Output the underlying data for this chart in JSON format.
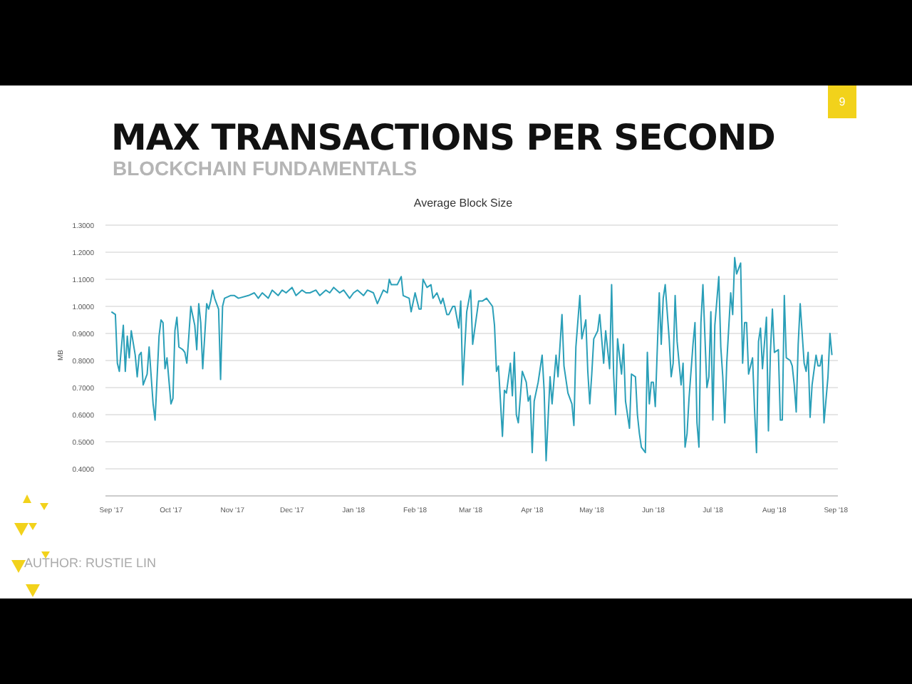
{
  "chart_data": {
    "type": "line",
    "title": "Average Block Size",
    "ylabel": "MB",
    "annotations": [
      "MAX TRANSACTIONS PER SECOND",
      "BLOCKCHAIN FUNDAMENTALS",
      "9",
      "AUTHOR: RUSTIE LIN"
    ],
    "x": [
      "2017-09-01",
      "2017-09-03",
      "2017-09-04",
      "2017-09-05",
      "2017-09-07",
      "2017-09-08",
      "2017-09-09",
      "2017-09-10",
      "2017-09-11",
      "2017-09-13",
      "2017-09-14",
      "2017-09-15",
      "2017-09-16",
      "2017-09-17",
      "2017-09-19",
      "2017-09-20",
      "2017-09-22",
      "2017-09-23",
      "2017-09-25",
      "2017-09-26",
      "2017-09-27",
      "2017-09-28",
      "2017-09-29",
      "2017-10-01",
      "2017-10-02",
      "2017-10-03",
      "2017-10-04",
      "2017-10-05",
      "2017-10-07",
      "2017-10-08",
      "2017-10-09",
      "2017-10-10",
      "2017-10-11",
      "2017-10-13",
      "2017-10-14",
      "2017-10-15",
      "2017-10-16",
      "2017-10-17",
      "2017-10-19",
      "2017-10-20",
      "2017-10-21",
      "2017-10-22",
      "2017-10-23",
      "2017-10-25",
      "2017-10-26",
      "2017-10-27",
      "2017-10-28",
      "2017-10-31",
      "2017-11-02",
      "2017-11-04",
      "2017-11-09",
      "2017-11-12",
      "2017-11-14",
      "2017-11-16",
      "2017-11-19",
      "2017-11-21",
      "2017-11-24",
      "2017-11-26",
      "2017-11-28",
      "2017-12-01",
      "2017-12-03",
      "2017-12-06",
      "2017-12-08",
      "2017-12-10",
      "2017-12-13",
      "2017-12-15",
      "2017-12-18",
      "2017-12-20",
      "2017-12-22",
      "2017-12-25",
      "2017-12-27",
      "2017-12-30",
      "2018-01-01",
      "2018-01-03",
      "2018-01-06",
      "2018-01-08",
      "2018-01-11",
      "2018-01-13",
      "2018-01-16",
      "2018-01-18",
      "2018-01-19",
      "2018-01-20",
      "2018-01-23",
      "2018-01-25",
      "2018-01-26",
      "2018-01-29",
      "2018-01-30",
      "2018-02-01",
      "2018-02-03",
      "2018-02-04",
      "2018-02-05",
      "2018-02-07",
      "2018-02-09",
      "2018-02-10",
      "2018-02-12",
      "2018-02-14",
      "2018-02-15",
      "2018-02-17",
      "2018-02-18",
      "2018-02-20",
      "2018-02-21",
      "2018-02-23",
      "2018-02-24",
      "2018-02-25",
      "2018-02-27",
      "2018-03-01",
      "2018-03-02",
      "2018-03-05",
      "2018-03-07",
      "2018-03-09",
      "2018-03-12",
      "2018-03-13",
      "2018-03-14",
      "2018-03-15",
      "2018-03-17",
      "2018-03-18",
      "2018-03-19",
      "2018-03-21",
      "2018-03-22",
      "2018-03-23",
      "2018-03-24",
      "2018-03-25",
      "2018-03-27",
      "2018-03-29",
      "2018-03-30",
      "2018-03-31",
      "2018-04-01",
      "2018-04-02",
      "2018-04-04",
      "2018-04-06",
      "2018-04-07",
      "2018-04-08",
      "2018-04-10",
      "2018-04-11",
      "2018-04-13",
      "2018-04-14",
      "2018-04-16",
      "2018-04-17",
      "2018-04-19",
      "2018-04-21",
      "2018-04-22",
      "2018-04-23",
      "2018-04-25",
      "2018-04-26",
      "2018-04-28",
      "2018-04-29",
      "2018-04-30",
      "2018-05-01",
      "2018-05-02",
      "2018-05-04",
      "2018-05-05",
      "2018-05-07",
      "2018-05-08",
      "2018-05-10",
      "2018-05-11",
      "2018-05-12",
      "2018-05-13",
      "2018-05-14",
      "2018-05-16",
      "2018-05-17",
      "2018-05-18",
      "2018-05-20",
      "2018-05-21",
      "2018-05-23",
      "2018-05-24",
      "2018-05-25",
      "2018-05-26",
      "2018-05-28",
      "2018-05-29",
      "2018-05-30",
      "2018-05-31",
      "2018-06-01",
      "2018-06-02",
      "2018-06-04",
      "2018-06-05",
      "2018-06-06",
      "2018-06-07",
      "2018-06-09",
      "2018-06-10",
      "2018-06-11",
      "2018-06-12",
      "2018-06-13",
      "2018-06-15",
      "2018-06-16",
      "2018-06-17",
      "2018-06-18",
      "2018-06-19",
      "2018-06-21",
      "2018-06-22",
      "2018-06-23",
      "2018-06-24",
      "2018-06-25",
      "2018-06-26",
      "2018-06-28",
      "2018-06-29",
      "2018-06-30",
      "2018-07-01",
      "2018-07-02",
      "2018-07-04",
      "2018-07-05",
      "2018-07-06",
      "2018-07-07",
      "2018-07-08",
      "2018-07-10",
      "2018-07-11",
      "2018-07-12",
      "2018-07-13",
      "2018-07-15",
      "2018-07-16",
      "2018-07-17",
      "2018-07-18",
      "2018-07-19",
      "2018-07-21",
      "2018-07-22",
      "2018-07-23",
      "2018-07-24",
      "2018-07-25",
      "2018-07-26",
      "2018-07-28",
      "2018-07-29",
      "2018-07-30",
      "2018-07-31",
      "2018-08-01",
      "2018-08-03",
      "2018-08-04",
      "2018-08-05",
      "2018-08-06",
      "2018-08-07",
      "2018-08-09",
      "2018-08-10",
      "2018-08-11",
      "2018-08-12",
      "2018-08-13",
      "2018-08-14",
      "2018-08-16",
      "2018-08-17",
      "2018-08-18",
      "2018-08-19",
      "2018-08-20",
      "2018-08-22",
      "2018-08-23",
      "2018-08-24",
      "2018-08-25",
      "2018-08-26",
      "2018-08-28",
      "2018-08-29",
      "2018-08-30"
    ],
    "series": [
      {
        "color": "#2a9fb8",
        "values": [
          0.98,
          0.97,
          0.79,
          0.76,
          0.93,
          0.76,
          0.89,
          0.81,
          0.91,
          0.82,
          0.74,
          0.82,
          0.83,
          0.71,
          0.75,
          0.85,
          0.64,
          0.58,
          0.89,
          0.95,
          0.94,
          0.77,
          0.81,
          0.64,
          0.66,
          0.91,
          0.96,
          0.85,
          0.84,
          0.83,
          0.79,
          0.89,
          1.0,
          0.93,
          0.84,
          1.01,
          0.94,
          0.77,
          1.01,
          0.99,
          1.02,
          1.06,
          1.03,
          0.99,
          0.73,
          1.0,
          1.03,
          1.04,
          1.04,
          1.03,
          1.04,
          1.05,
          1.03,
          1.05,
          1.03,
          1.06,
          1.04,
          1.06,
          1.05,
          1.07,
          1.04,
          1.06,
          1.05,
          1.05,
          1.06,
          1.04,
          1.06,
          1.05,
          1.07,
          1.05,
          1.06,
          1.03,
          1.05,
          1.06,
          1.04,
          1.06,
          1.05,
          1.01,
          1.06,
          1.05,
          1.1,
          1.08,
          1.08,
          1.11,
          1.04,
          1.03,
          0.98,
          1.05,
          0.99,
          0.99,
          1.1,
          1.07,
          1.08,
          1.03,
          1.05,
          1.01,
          1.03,
          0.97,
          0.97,
          1.0,
          1.0,
          0.92,
          1.02,
          0.71,
          0.98,
          1.06,
          0.86,
          1.02,
          1.02,
          1.03,
          1.0,
          0.93,
          0.76,
          0.78,
          0.52,
          0.69,
          0.68,
          0.79,
          0.67,
          0.83,
          0.6,
          0.57,
          0.76,
          0.72,
          0.65,
          0.67,
          0.46,
          0.65,
          0.72,
          0.82,
          0.69,
          0.43,
          0.74,
          0.64,
          0.82,
          0.74,
          0.97,
          0.78,
          0.68,
          0.64,
          0.56,
          0.85,
          1.04,
          0.88,
          0.95,
          0.76,
          0.64,
          0.75,
          0.88,
          0.91,
          0.97,
          0.79,
          0.91,
          0.77,
          1.08,
          0.75,
          0.6,
          0.88,
          0.75,
          0.86,
          0.65,
          0.55,
          0.75,
          0.74,
          0.6,
          0.53,
          0.48,
          0.46,
          0.83,
          0.64,
          0.72,
          0.72,
          0.63,
          1.05,
          0.86,
          1.03,
          1.08,
          0.88,
          0.74,
          0.79,
          1.04,
          0.87,
          0.71,
          0.79,
          0.48,
          0.53,
          0.66,
          0.86,
          0.94,
          0.57,
          0.48,
          0.94,
          1.08,
          0.7,
          0.74,
          0.98,
          0.58,
          0.93,
          1.11,
          0.85,
          0.74,
          0.57,
          0.79,
          1.05,
          0.97,
          1.18,
          1.12,
          1.16,
          0.79,
          0.94,
          0.94,
          0.75,
          0.81,
          0.62,
          0.46,
          0.87,
          0.92,
          0.77,
          0.96,
          0.54,
          0.83,
          0.99,
          0.83,
          0.84,
          0.58,
          0.58,
          1.04,
          0.81,
          0.8,
          0.78,
          0.71,
          0.61,
          0.86,
          1.01,
          0.79,
          0.76,
          0.83,
          0.59,
          0.71,
          0.82,
          0.78,
          0.78,
          0.82,
          0.57,
          0.74,
          0.9,
          0.82
        ]
      }
    ],
    "xlim": [
      "2017-08-29",
      "2018-09-02"
    ],
    "xticks": [
      {
        "value": "2017-09-01",
        "label": "Sep '17"
      },
      {
        "value": "2017-10-01",
        "label": "Oct '17"
      },
      {
        "value": "2017-11-01",
        "label": "Nov '17"
      },
      {
        "value": "2017-12-01",
        "label": "Dec '17"
      },
      {
        "value": "2018-01-01",
        "label": "Jan '18"
      },
      {
        "value": "2018-02-01",
        "label": "Feb '18"
      },
      {
        "value": "2018-03-01",
        "label": "Mar '18"
      },
      {
        "value": "2018-04-01",
        "label": "Apr '18"
      },
      {
        "value": "2018-05-01",
        "label": "May '18"
      },
      {
        "value": "2018-06-01",
        "label": "Jun '18"
      },
      {
        "value": "2018-07-01",
        "label": "Jul '18"
      },
      {
        "value": "2018-08-01",
        "label": "Aug '18"
      },
      {
        "value": "2018-09-01",
        "label": "Sep '18"
      }
    ],
    "ylim": [
      0.3,
      1.3
    ],
    "yticks": [
      {
        "value": 0.4,
        "label": "0.4000"
      },
      {
        "value": 0.5,
        "label": "0.5000"
      },
      {
        "value": 0.6,
        "label": "0.6000"
      },
      {
        "value": 0.7,
        "label": "0.7000"
      },
      {
        "value": 0.8,
        "label": "0.8000"
      },
      {
        "value": 0.9,
        "label": "0.9000"
      },
      {
        "value": 1.0,
        "label": "1.0000"
      },
      {
        "value": 1.1,
        "label": "1.1000"
      },
      {
        "value": 1.2,
        "label": "1.2000"
      },
      {
        "value": 1.3,
        "label": "1.3000"
      }
    ],
    "grid": "y",
    "legend": false,
    "marker": "none",
    "line_style": "solid"
  }
}
